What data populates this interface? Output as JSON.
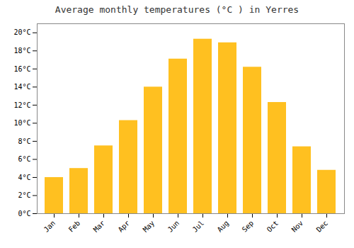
{
  "chart_data": {
    "type": "bar",
    "title": "Average monthly temperatures (°C ) in Yerres",
    "categories": [
      "Jan",
      "Feb",
      "Mar",
      "Apr",
      "May",
      "Jun",
      "Jul",
      "Aug",
      "Sep",
      "Oct",
      "Nov",
      "Dec"
    ],
    "values": [
      4.0,
      5.0,
      7.5,
      10.3,
      14.0,
      17.1,
      19.3,
      18.9,
      16.2,
      12.3,
      7.4,
      4.8
    ],
    "color": "#FFC020",
    "ylim": [
      0,
      21
    ],
    "yticks": [
      {
        "value": 0,
        "label": "0°C"
      },
      {
        "value": 2,
        "label": "2°C"
      },
      {
        "value": 4,
        "label": "4°C"
      },
      {
        "value": 6,
        "label": "6°C"
      },
      {
        "value": 8,
        "label": "8°C"
      },
      {
        "value": 10,
        "label": "10°C"
      },
      {
        "value": 12,
        "label": "12°C"
      },
      {
        "value": 14,
        "label": "14°C"
      },
      {
        "value": 16,
        "label": "16°C"
      },
      {
        "value": 18,
        "label": "18°C"
      },
      {
        "value": 20,
        "label": "20°C"
      }
    ],
    "grid": false
  }
}
